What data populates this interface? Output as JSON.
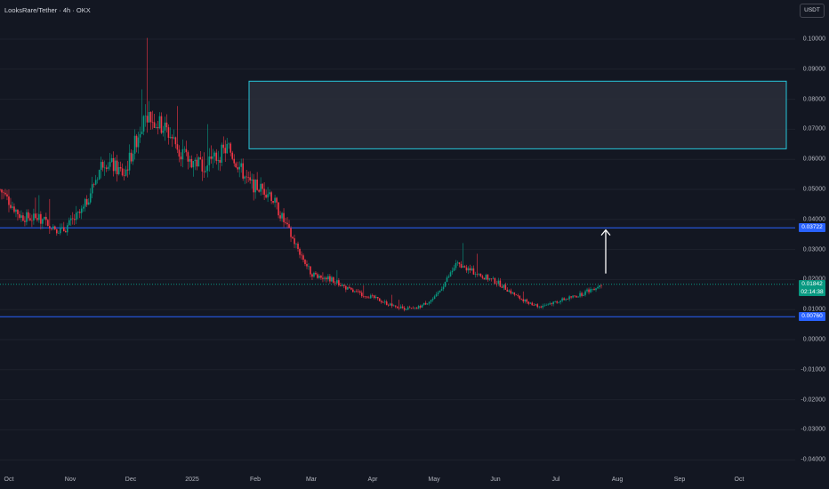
{
  "header": {
    "title": "LooksRare/Tether · 4h · OKX",
    "currency": "USDT"
  },
  "price_axis": {
    "ticks": [
      "0.10000",
      "0.09000",
      "0.08000",
      "0.07000",
      "0.06000",
      "0.05000",
      "0.04000",
      "0.03000",
      "0.02000",
      "0.01000",
      "0.00000",
      "-0.01000",
      "-0.02000",
      "-0.03000",
      "-0.04000"
    ],
    "tags": {
      "resistance": "0.03722",
      "current_price": "0.01842",
      "countdown": "02:14:38",
      "support": "0.00760"
    }
  },
  "time_axis": [
    "Oct",
    "Nov",
    "Dec",
    "2025",
    "Feb",
    "Mar",
    "Apr",
    "May",
    "Jun",
    "Jul",
    "Aug",
    "Sep",
    "Oct"
  ],
  "colors": {
    "background": "#131722",
    "up": "#089981",
    "down": "#f23645",
    "level_line": "#2962ff",
    "zone_border": "#26c6da",
    "zone_fill": "#2a2e39",
    "arrow": "#ffffff"
  },
  "chart_data": {
    "type": "candlestick",
    "symbol": "LooksRare/Tether",
    "interval": "4h",
    "exchange": "OKX",
    "ylim": [
      -0.04,
      0.1
    ],
    "horizontal_levels": [
      0.03722,
      0.0076
    ],
    "current_price": 0.01842,
    "target_zone": {
      "from": "Jan 2025",
      "to": "Oct",
      "low": 0.0635,
      "high": 0.086
    },
    "arrow": {
      "from": 0.022,
      "to": 0.0365,
      "at": "late Jul"
    },
    "price_path": [
      {
        "t": "Oct",
        "price": 0.05
      },
      {
        "t": "Oct",
        "price": 0.041
      },
      {
        "t": "Oct",
        "price": 0.04
      },
      {
        "t": "Nov",
        "price": 0.036
      },
      {
        "t": "Nov",
        "price": 0.043
      },
      {
        "t": "Nov",
        "price": 0.06
      },
      {
        "t": "Dec",
        "price": 0.055
      },
      {
        "t": "Dec",
        "price": 0.075
      },
      {
        "t": "Dec",
        "price": 0.07
      },
      {
        "t": "Dec",
        "price": 0.06
      },
      {
        "t": "2025",
        "price": 0.058
      },
      {
        "t": "2025",
        "price": 0.064
      },
      {
        "t": "2025",
        "price": 0.052
      },
      {
        "t": "2025",
        "price": 0.049
      },
      {
        "t": "2025",
        "price": 0.035
      },
      {
        "t": "Feb",
        "price": 0.022
      },
      {
        "t": "Feb",
        "price": 0.02
      },
      {
        "t": "Mar",
        "price": 0.016
      },
      {
        "t": "Mar",
        "price": 0.014
      },
      {
        "t": "Apr",
        "price": 0.011
      },
      {
        "t": "Apr",
        "price": 0.01
      },
      {
        "t": "Apr",
        "price": 0.014
      },
      {
        "t": "May",
        "price": 0.025
      },
      {
        "t": "May",
        "price": 0.022
      },
      {
        "t": "May",
        "price": 0.019
      },
      {
        "t": "Jun",
        "price": 0.014
      },
      {
        "t": "Jun",
        "price": 0.011
      },
      {
        "t": "Jul",
        "price": 0.013
      },
      {
        "t": "Jul",
        "price": 0.015
      },
      {
        "t": "Jul",
        "price": 0.01842
      }
    ]
  }
}
